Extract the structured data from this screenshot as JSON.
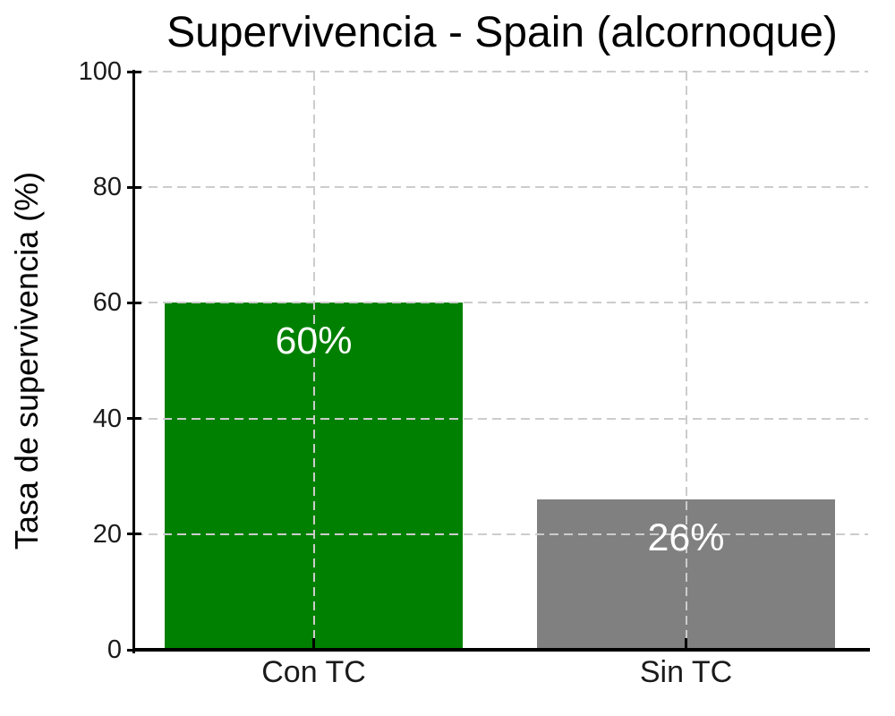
{
  "chart_data": {
    "type": "bar",
    "title": "Supervivencia - Spain (alcornoque)",
    "xlabel": "",
    "ylabel": "Tasa de supervivencia (%)",
    "categories": [
      "Con TC",
      "Sin TC"
    ],
    "values": [
      60,
      26
    ],
    "bar_labels": [
      "60%",
      "26%"
    ],
    "bar_colors": [
      "#008000",
      "#808080"
    ],
    "bar_label_color": "#ffffff",
    "ylim": [
      0,
      100
    ],
    "yticks": [
      0,
      20,
      40,
      60,
      80,
      100
    ],
    "grid": {
      "style": "dashed",
      "axes": "both",
      "color": "#cccccc"
    },
    "legend_position": "none",
    "spine_color": "#000000",
    "text_color": "#000000",
    "background_color": "#ffffff"
  }
}
